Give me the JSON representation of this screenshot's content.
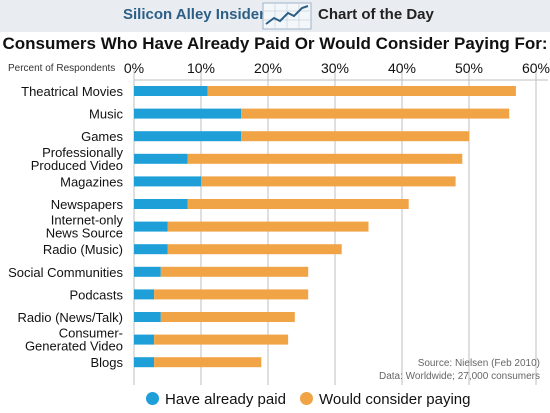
{
  "header": {
    "brand": "Silicon Alley Insider",
    "icon": "trend-chart-icon",
    "feature": "Chart of the Day"
  },
  "source_note": {
    "line1": "Source: Nielsen (Feb 2010)",
    "line2": "Data: Worldwide; 27,000 consumers"
  },
  "colors": {
    "paid": "#1e9fd8",
    "consider": "#f0a445",
    "gridline": "#bfbfbf",
    "header_bg": "#e9edf2"
  },
  "chart_data": {
    "type": "bar",
    "orientation": "horizontal",
    "stacked": true,
    "title": "Consumers Who Have Already Paid Or Would Consider Paying For:",
    "axis_label": "Percent of Respondents",
    "xlim": [
      0,
      60
    ],
    "ticks": [
      "0%",
      "10%",
      "20%",
      "30%",
      "40%",
      "50%",
      "60%"
    ],
    "tick_values": [
      0,
      10,
      20,
      30,
      40,
      50,
      60
    ],
    "grid": true,
    "legend": "bottom",
    "categories": [
      [
        "Theatrical Movies"
      ],
      [
        "Music"
      ],
      [
        "Games"
      ],
      [
        "Professionally",
        "Produced Video"
      ],
      [
        "Magazines"
      ],
      [
        "Newspapers"
      ],
      [
        "Internet-only",
        "News Source"
      ],
      [
        "Radio (Music)"
      ],
      [
        "Social Communities"
      ],
      [
        "Podcasts"
      ],
      [
        "Radio (News/Talk)"
      ],
      [
        "Consumer-",
        "Generated Video"
      ],
      [
        "Blogs"
      ]
    ],
    "series": [
      {
        "name": "Have already paid",
        "values": [
          11,
          16,
          16,
          8,
          10,
          8,
          5,
          5,
          4,
          3,
          4,
          3,
          3
        ]
      },
      {
        "name": "Would consider paying",
        "values": [
          46,
          40,
          34,
          41,
          38,
          33,
          30,
          26,
          22,
          23,
          20,
          20,
          16
        ]
      }
    ]
  }
}
